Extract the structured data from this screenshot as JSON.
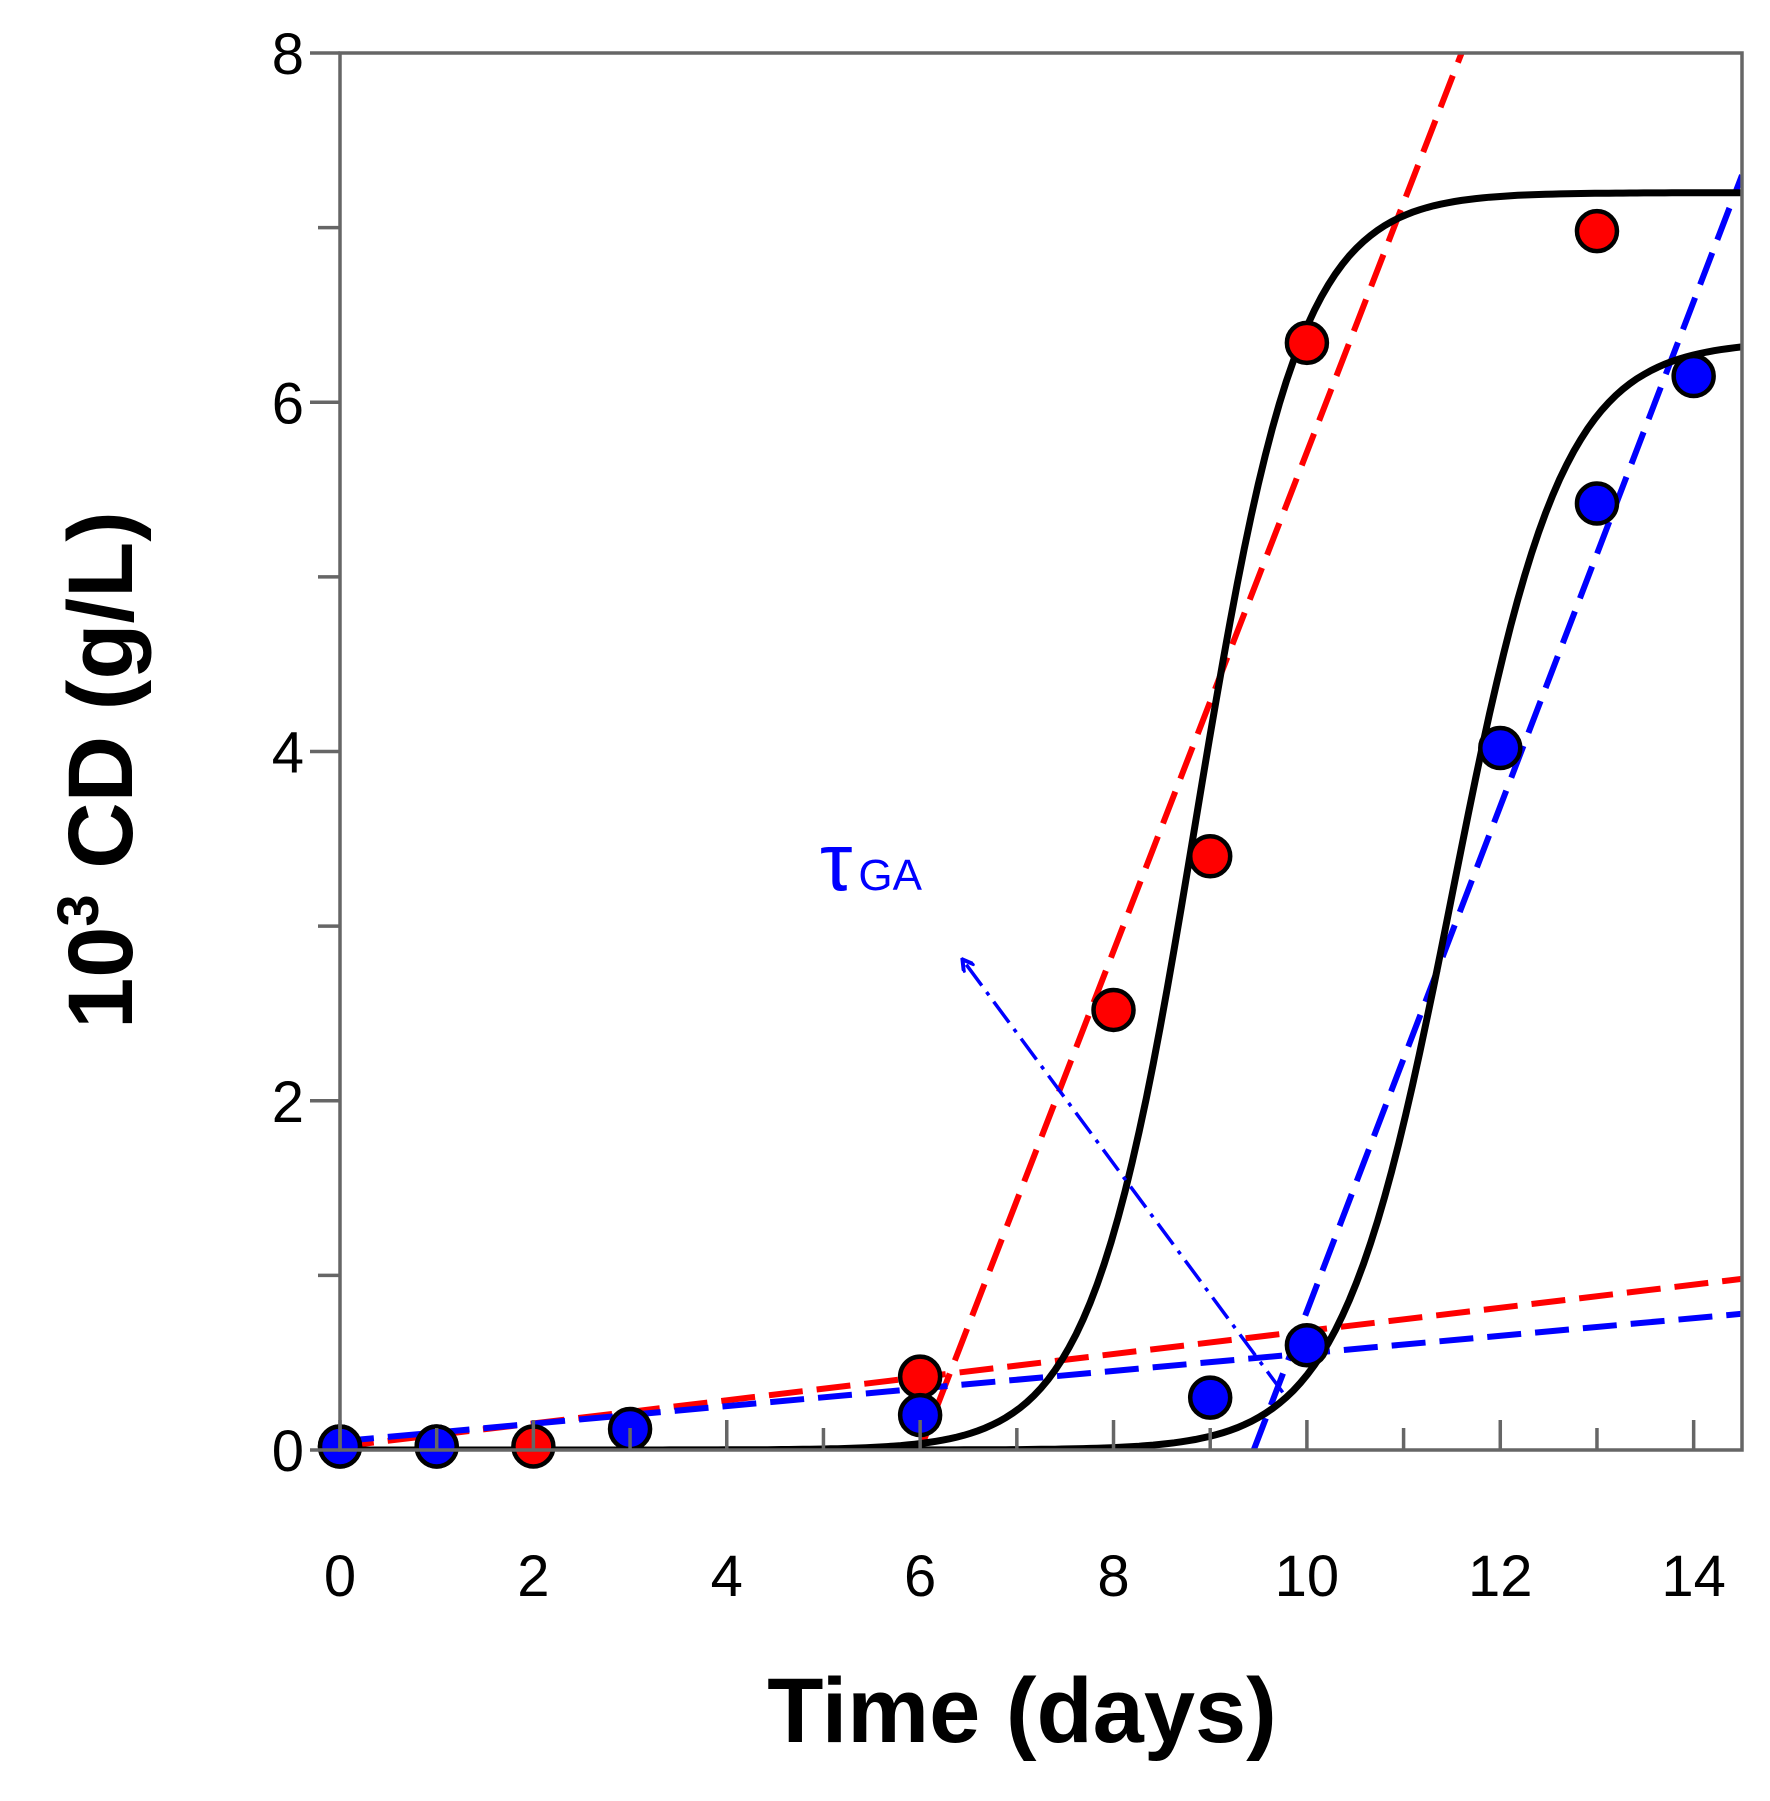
{
  "chart_data": {
    "type": "scatter",
    "title": "",
    "xlabel": "Time (days)",
    "ylabel_base": "10",
    "ylabel_exp": "3",
    "ylabel_rest": " CD (g/L)",
    "xlim": [
      0,
      14.5
    ],
    "ylim": [
      0,
      8
    ],
    "x_ticks_major": [
      0,
      2,
      4,
      6,
      8,
      10,
      12,
      14
    ],
    "x_ticks_minor": [
      1,
      3,
      5,
      7,
      9,
      11,
      13
    ],
    "y_ticks_major": [
      0,
      2,
      4,
      6,
      8
    ],
    "y_ticks_minor": [
      1,
      3,
      5,
      7
    ],
    "grid": false,
    "series": [
      {
        "name": "red",
        "color": "#ff0000",
        "points": [
          [
            0,
            0.02
          ],
          [
            1,
            0.02
          ],
          [
            2,
            0.02
          ],
          [
            6,
            0.42
          ],
          [
            8,
            2.52
          ],
          [
            9,
            3.4
          ],
          [
            10,
            6.34
          ],
          [
            13,
            6.98
          ]
        ],
        "fit": {
          "K": 7.2,
          "r": 1.85,
          "t0": 8.85,
          "range": [
            0,
            14.5
          ]
        },
        "growth_line": {
          "x": [
            6.0,
            11.6
          ],
          "y": [
            0,
            8
          ]
        },
        "lag_line": {
          "x": [
            0,
            14.5
          ],
          "y": [
            0.02,
            0.98
          ]
        }
      },
      {
        "name": "blue",
        "color": "#0000ff",
        "points": [
          [
            0,
            0.02
          ],
          [
            1,
            0.02
          ],
          [
            3,
            0.12
          ],
          [
            6,
            0.2
          ],
          [
            9,
            0.3
          ],
          [
            10,
            0.6
          ],
          [
            12,
            4.02
          ],
          [
            13,
            5.42
          ],
          [
            14,
            6.15
          ]
        ],
        "fit": {
          "K": 6.35,
          "r": 1.75,
          "t0": 11.5,
          "range": [
            0,
            14.5
          ]
        },
        "growth_line": {
          "x": [
            9.45,
            14.5
          ],
          "y": [
            0,
            7.3
          ]
        },
        "lag_line": {
          "x": [
            0,
            14.5
          ],
          "y": [
            0.05,
            0.78
          ]
        }
      }
    ],
    "annotation": {
      "symbol": "τ",
      "subscript": "GA",
      "color": "#0000ff",
      "arrow_from": [
        9.75,
        0.33
      ],
      "arrow_to": [
        6.45,
        2.8
      ]
    }
  }
}
